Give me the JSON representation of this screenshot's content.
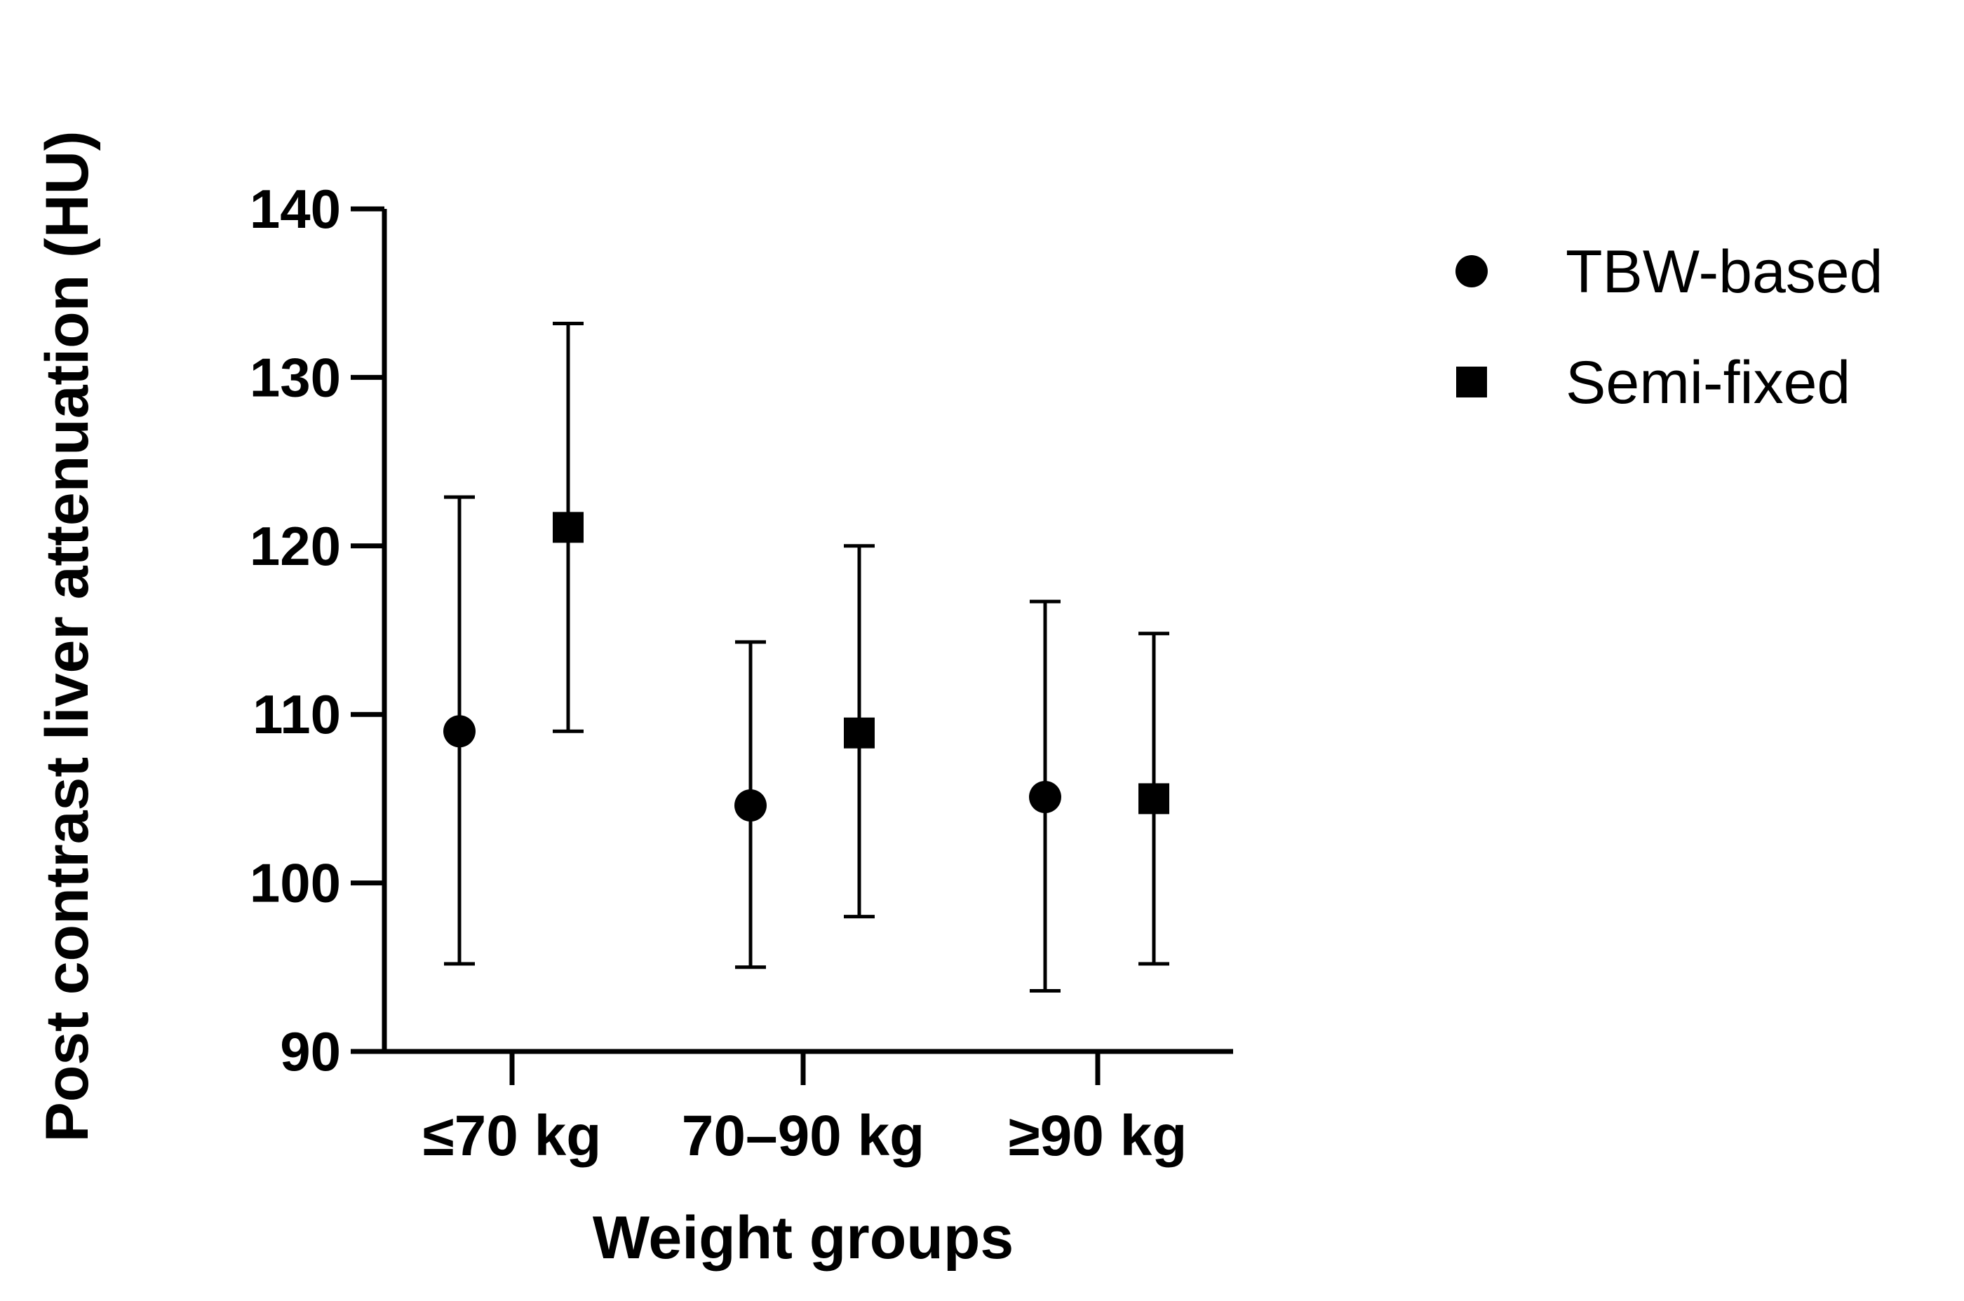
{
  "chart_data": {
    "type": "scatter",
    "title": "",
    "xlabel": "Weight groups",
    "ylabel": "Post contrast liver attenuation (HU)",
    "ylim": [
      90,
      140
    ],
    "yticks": [
      90,
      100,
      110,
      120,
      130,
      140
    ],
    "categories": [
      "≤70 kg",
      "70–90 kg",
      "≥90 kg"
    ],
    "legend_position": "top-right",
    "series": [
      {
        "name": "TBW-based",
        "marker": "circle",
        "color": "#000000",
        "values": [
          109.0,
          104.6,
          105.1
        ],
        "error_low": [
          95.2,
          95.0,
          93.6
        ],
        "error_high": [
          122.9,
          114.3,
          116.7
        ]
      },
      {
        "name": "Semi-fixed",
        "marker": "square",
        "color": "#000000",
        "values": [
          121.1,
          108.9,
          105.0
        ],
        "error_low": [
          109.0,
          98.0,
          95.2
        ],
        "error_high": [
          133.2,
          120.0,
          114.8
        ]
      }
    ]
  }
}
